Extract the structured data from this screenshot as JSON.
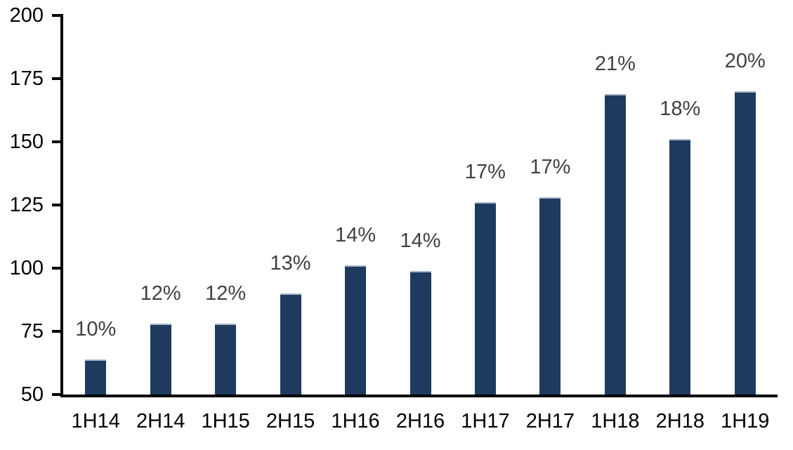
{
  "chart_data": {
    "type": "bar",
    "categories": [
      "1H14",
      "2H14",
      "1H15",
      "2H15",
      "1H16",
      "2H16",
      "1H17",
      "2H17",
      "1H18",
      "2H18",
      "1H19"
    ],
    "values": [
      64,
      78,
      78,
      90,
      101,
      99,
      126,
      128,
      169,
      151,
      170
    ],
    "data_labels": [
      "10%",
      "12%",
      "12%",
      "13%",
      "14%",
      "14%",
      "17%",
      "17%",
      "21%",
      "18%",
      "20%"
    ],
    "title": "",
    "xlabel": "",
    "ylabel": "",
    "ylim": [
      50,
      200
    ],
    "y_ticks": [
      200,
      175,
      150,
      125,
      100,
      75,
      50
    ],
    "grid": false,
    "legend": false,
    "bar_color": "#1f3a5f",
    "bar_edge_color": "#a5b3c9",
    "data_label_color": "#404040",
    "axis_color": "#000000"
  }
}
